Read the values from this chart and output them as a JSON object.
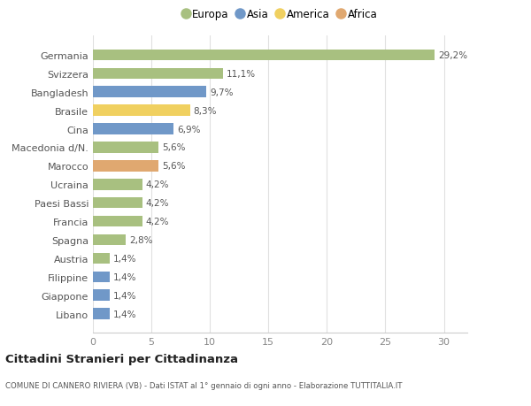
{
  "countries": [
    "Germania",
    "Svizzera",
    "Bangladesh",
    "Brasile",
    "Cina",
    "Macedonia d/N.",
    "Marocco",
    "Ucraina",
    "Paesi Bassi",
    "Francia",
    "Spagna",
    "Austria",
    "Filippine",
    "Giappone",
    "Libano"
  ],
  "values": [
    29.2,
    11.1,
    9.7,
    8.3,
    6.9,
    5.6,
    5.6,
    4.2,
    4.2,
    4.2,
    2.8,
    1.4,
    1.4,
    1.4,
    1.4
  ],
  "labels": [
    "29,2%",
    "11,1%",
    "9,7%",
    "8,3%",
    "6,9%",
    "5,6%",
    "5,6%",
    "4,2%",
    "4,2%",
    "4,2%",
    "2,8%",
    "1,4%",
    "1,4%",
    "1,4%",
    "1,4%"
  ],
  "continents": [
    "Europa",
    "Europa",
    "Asia",
    "America",
    "Asia",
    "Europa",
    "Africa",
    "Europa",
    "Europa",
    "Europa",
    "Europa",
    "Europa",
    "Asia",
    "Asia",
    "Asia"
  ],
  "continent_colors": {
    "Europa": "#a8c080",
    "Asia": "#7098c8",
    "America": "#f0d060",
    "Africa": "#e0a870"
  },
  "legend_order": [
    "Europa",
    "Asia",
    "America",
    "Africa"
  ],
  "title": "Cittadini Stranieri per Cittadinanza",
  "subtitle": "COMUNE DI CANNERO RIVIERA (VB) - Dati ISTAT al 1° gennaio di ogni anno - Elaborazione TUTTITALIA.IT",
  "xlim": [
    0,
    32
  ],
  "xticks": [
    0,
    5,
    10,
    15,
    20,
    25,
    30
  ],
  "background_color": "#ffffff",
  "grid_color": "#e0e0e0",
  "bar_height": 0.6
}
